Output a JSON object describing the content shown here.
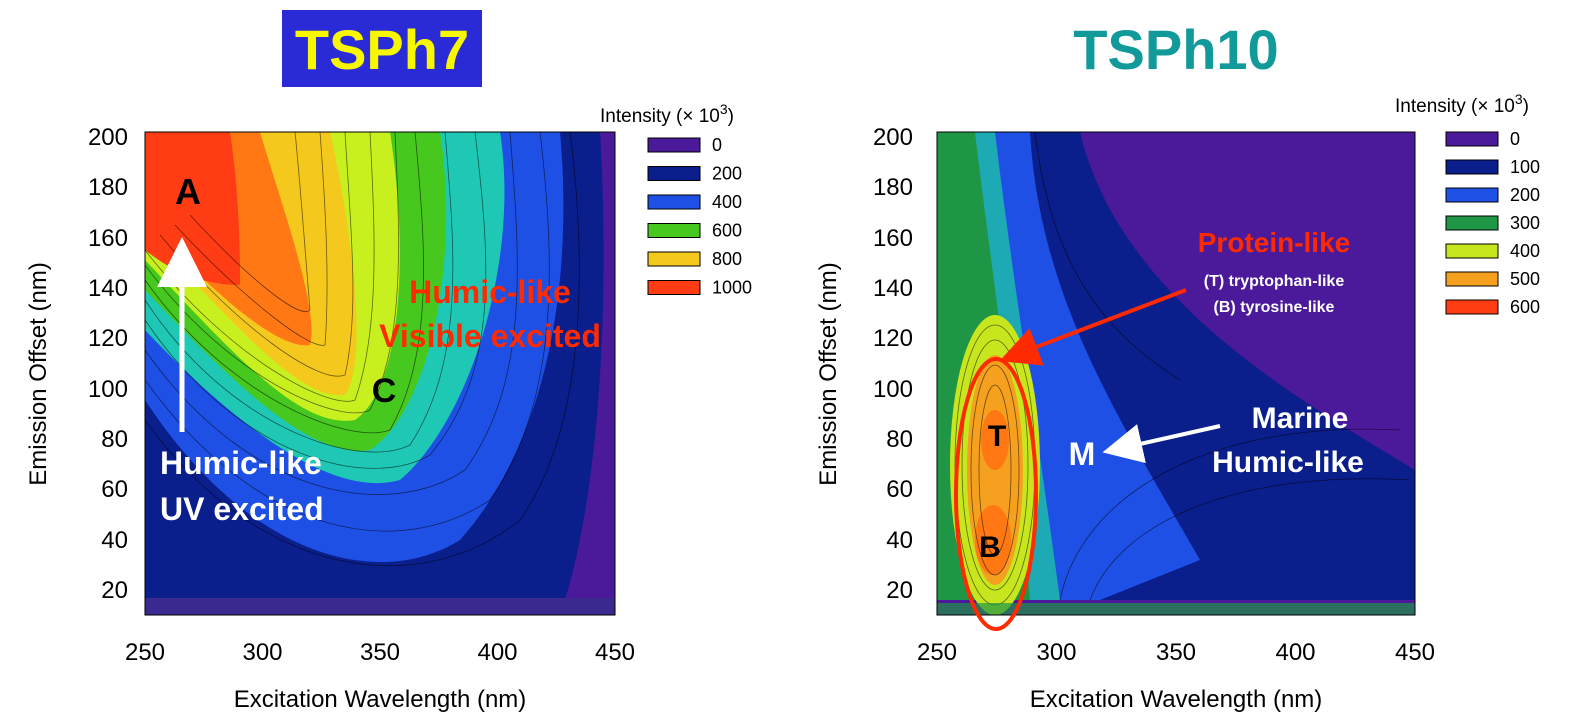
{
  "chart_data": [
    {
      "type": "heatmap",
      "title": "TSPh7",
      "title_style": {
        "text_color": "#f7f700",
        "background": "#2a2ad6"
      },
      "xlabel": "Excitation Wavelength (nm)",
      "ylabel": "Emission Offset (nm)",
      "xlim": [
        250,
        450
      ],
      "ylim": [
        8,
        200
      ],
      "xticks": [
        250,
        300,
        350,
        400,
        450
      ],
      "yticks": [
        20,
        40,
        60,
        80,
        100,
        120,
        140,
        160,
        180,
        200
      ],
      "legend_title": "Intensity (× 10",
      "legend_title_sup": "3",
      "legend_title_close": ")",
      "legend": [
        {
          "label": "0",
          "color": "#4b1a9b"
        },
        {
          "label": "200",
          "color": "#0a1e8c"
        },
        {
          "label": "400",
          "color": "#1e50e6"
        },
        {
          "label": "600",
          "color": "#46c81e"
        },
        {
          "label": "800",
          "color": "#f5c81e"
        },
        {
          "label": "1000",
          "color": "#ff3c14"
        }
      ],
      "peaks": [
        {
          "label": "A",
          "x": 270,
          "y": 180,
          "value": 1000
        },
        {
          "label": "C",
          "x": 350,
          "y": 98,
          "value": 700
        }
      ],
      "annotations": [
        {
          "text": "A"
        },
        {
          "text": "C"
        },
        {
          "text": "Humic-like"
        },
        {
          "text": "UV excited"
        },
        {
          "text": "Humic-like"
        },
        {
          "text": "Visible excited"
        }
      ]
    },
    {
      "type": "heatmap",
      "title": "TSPh10",
      "title_style": {
        "text_color": "#12999a",
        "background": "none"
      },
      "xlabel": "Excitation Wavelength (nm)",
      "ylabel": "Emission Offset (nm)",
      "xlim": [
        250,
        450
      ],
      "ylim": [
        8,
        200
      ],
      "xticks": [
        250,
        300,
        350,
        400,
        450
      ],
      "yticks": [
        20,
        40,
        60,
        80,
        100,
        120,
        140,
        160,
        180,
        200
      ],
      "legend_title": "Intensity (× 10",
      "legend_title_sup": "3",
      "legend_title_close": ")",
      "legend": [
        {
          "label": "0",
          "color": "#4b1a9b"
        },
        {
          "label": "100",
          "color": "#0a1e8c"
        },
        {
          "label": "200",
          "color": "#1e50e6"
        },
        {
          "label": "300",
          "color": "#1e9646"
        },
        {
          "label": "400",
          "color": "#c8e61e"
        },
        {
          "label": "500",
          "color": "#f5a01e"
        },
        {
          "label": "600",
          "color": "#ff3c14"
        }
      ],
      "peaks": [
        {
          "label": "T",
          "x": 275,
          "y": 80,
          "value": 500
        },
        {
          "label": "B",
          "x": 272,
          "y": 33,
          "value": 550
        },
        {
          "label": "M",
          "x": 315,
          "y": 75,
          "value": 150
        }
      ],
      "annotations": [
        {
          "text": "Protein-like"
        },
        {
          "text": "(T) tryptophan-like"
        },
        {
          "text": "(B) tyrosine-like"
        },
        {
          "text": "Marine"
        },
        {
          "text": "Humic-like"
        },
        {
          "text": "T"
        },
        {
          "text": "B"
        },
        {
          "text": "M"
        }
      ]
    }
  ]
}
